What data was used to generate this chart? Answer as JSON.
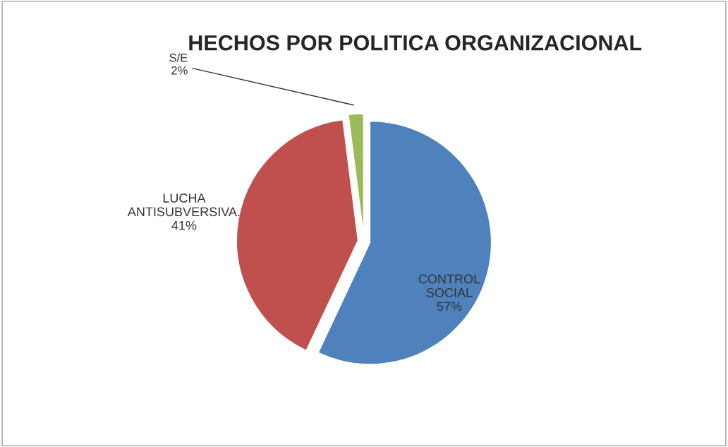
{
  "chart_data": {
    "type": "pie",
    "title": "HECHOS POR POLITICA ORGANIZACIONAL",
    "categories": [
      "CONTROL SOCIAL",
      "LUCHA ANTISUBVERSIVA.",
      "S/E"
    ],
    "values": [
      57,
      41,
      2
    ],
    "colors": [
      "#4f81bd",
      "#c0504d",
      "#9bbb59"
    ],
    "value_labels": [
      "57%",
      "41%",
      "2%"
    ]
  }
}
